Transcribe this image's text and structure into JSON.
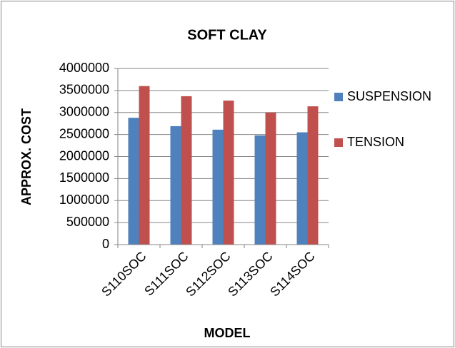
{
  "chart_data": {
    "type": "bar",
    "title": "SOFT CLAY",
    "x_label": "MODEL",
    "y_label": "APPROX. COST",
    "categories": [
      "S110SOC",
      "S111SOC",
      "S112SOC",
      "S113SOC",
      "S114SOC"
    ],
    "series": [
      {
        "name": "SUSPENSION",
        "color": "#4f81bd",
        "values": [
          2880000,
          2690000,
          2610000,
          2480000,
          2550000
        ]
      },
      {
        "name": "TENSION",
        "color": "#c0504d",
        "values": [
          3600000,
          3370000,
          3270000,
          3000000,
          3140000
        ]
      }
    ],
    "ylim": [
      0,
      4000000
    ],
    "yticks": [
      0,
      500000,
      1000000,
      1500000,
      2000000,
      2500000,
      3000000,
      3500000,
      4000000
    ],
    "grid": true,
    "legend": "right"
  }
}
